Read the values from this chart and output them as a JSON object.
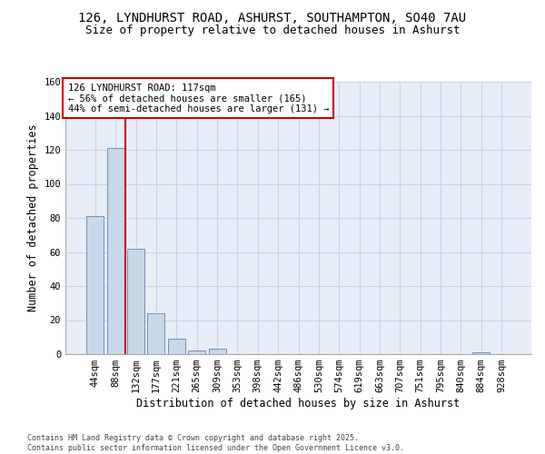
{
  "title_line1": "126, LYNDHURST ROAD, ASHURST, SOUTHAMPTON, SO40 7AU",
  "title_line2": "Size of property relative to detached houses in Ashurst",
  "xlabel": "Distribution of detached houses by size in Ashurst",
  "ylabel": "Number of detached properties",
  "categories": [
    "44sqm",
    "88sqm",
    "132sqm",
    "177sqm",
    "221sqm",
    "265sqm",
    "309sqm",
    "353sqm",
    "398sqm",
    "442sqm",
    "486sqm",
    "530sqm",
    "574sqm",
    "619sqm",
    "663sqm",
    "707sqm",
    "751sqm",
    "795sqm",
    "840sqm",
    "884sqm",
    "928sqm"
  ],
  "values": [
    81,
    121,
    62,
    24,
    9,
    2,
    3,
    0,
    0,
    0,
    0,
    0,
    0,
    0,
    0,
    0,
    0,
    0,
    0,
    1,
    0
  ],
  "bar_color": "#c8d8e8",
  "bar_edge_color": "#7090b8",
  "vline_color": "#cc0000",
  "vline_x_index": 1.5,
  "annotation_text": "126 LYNDHURST ROAD: 117sqm\n← 56% of detached houses are smaller (165)\n44% of semi-detached houses are larger (131) →",
  "annotation_box_facecolor": "#ffffff",
  "annotation_box_edgecolor": "#cc0000",
  "ylim": [
    0,
    160
  ],
  "yticks": [
    0,
    20,
    40,
    60,
    80,
    100,
    120,
    140,
    160
  ],
  "grid_color": "#c8d4e4",
  "background_color": "#e8eef8",
  "footnote": "Contains HM Land Registry data © Crown copyright and database right 2025.\nContains public sector information licensed under the Open Government Licence v3.0.",
  "title_fontsize": 10,
  "subtitle_fontsize": 9,
  "axis_label_fontsize": 8.5,
  "tick_fontsize": 7.5,
  "annotation_fontsize": 7.5,
  "footnote_fontsize": 6
}
